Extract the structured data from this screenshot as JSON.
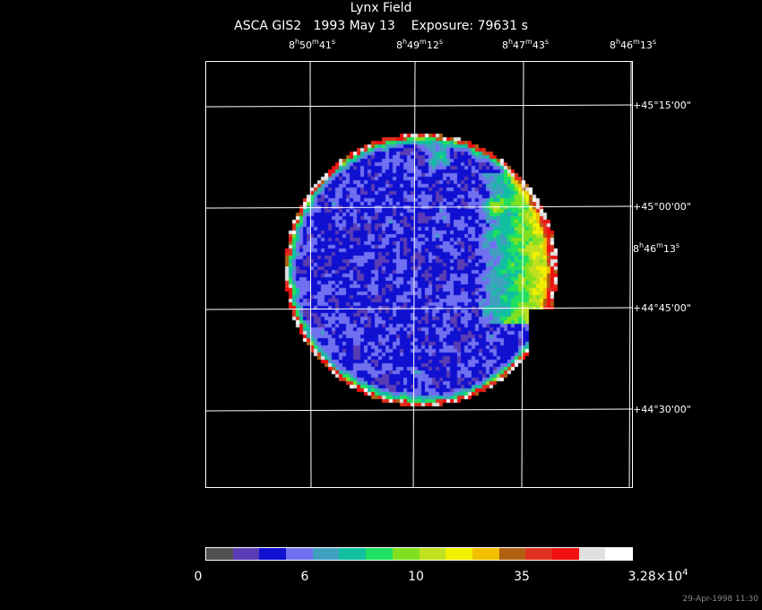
{
  "header": {
    "title": "Lynx Field",
    "subtitle": "ASCA GIS2   1993 May 13    Exposure: 79631 s"
  },
  "ra_labels": [
    {
      "h": "8",
      "m": "50",
      "s": "41"
    },
    {
      "h": "8",
      "m": "49",
      "s": "12"
    },
    {
      "h": "8",
      "m": "47",
      "s": "43"
    },
    {
      "h": "8",
      "m": "46",
      "s": "13"
    }
  ],
  "side_ra_label": {
    "h": "8",
    "m": "46",
    "s": "13"
  },
  "dec_labels": [
    "+45°15'00\"",
    "+45°00'00\"",
    "+44°45'00\"",
    "+44°30'00\""
  ],
  "colorbar": {
    "colors": [
      "#505050",
      "#5a3cb4",
      "#1010d0",
      "#7070f0",
      "#40a0c0",
      "#10c0a0",
      "#20e060",
      "#80e020",
      "#c0e020",
      "#f0f000",
      "#f0c000",
      "#b06010",
      "#e03020",
      "#f01010",
      "#e0e0e0",
      "#ffffff"
    ],
    "labels": [
      "0",
      "6",
      "10",
      "35"
    ],
    "max_label": {
      "mantissa": "3.28×10",
      "exp": "4"
    }
  },
  "timestamp": "29-Apr-1998 11:30"
}
